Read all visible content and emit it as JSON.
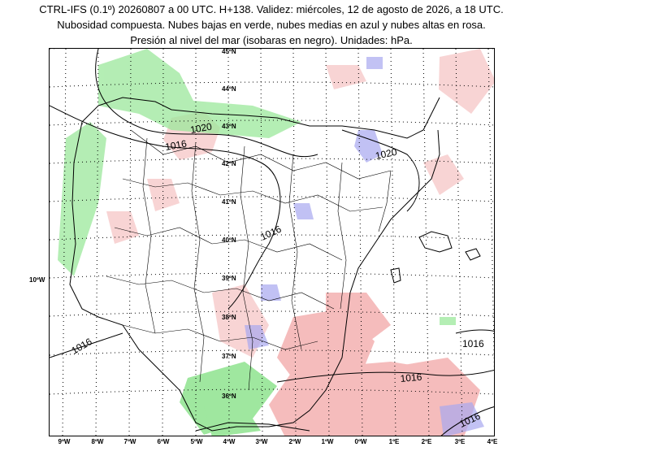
{
  "title": {
    "line1": "CTRL-IFS (0.1º) 20260807 a 00 UTC. H+138. Validez: miércoles, 12 de agosto de 2026, a 18 UTC.",
    "line2": "Nubosidad compuesta. Nubes bajas en verde, nubes medias en azul y nubes altas en rosa.",
    "line3": "Presión al nivel del mar (isobaras en negro). Unidades: hPa."
  },
  "colors": {
    "low_clouds": "#7fe07f",
    "mid_clouds": "#a8a8f0",
    "high_clouds": "#f2a6a6",
    "isobars": "#000000"
  },
  "lat_labels": [
    "45ºN",
    "44ºN",
    "43ºN",
    "42ºN",
    "41ºN",
    "40ºN",
    "39ºN",
    "38ºN",
    "37ºN",
    "36ºN"
  ],
  "lon_labels": [
    "9ºW",
    "8ºW",
    "7ºW",
    "6ºW",
    "5ºW",
    "4ºW",
    "3ºW",
    "2ºW",
    "1ºW",
    "0ºW",
    "1ºE",
    "2ºE",
    "3ºE",
    "4ºE"
  ],
  "side_label": "10ºW",
  "isobar_labels": [
    "1020",
    "1016",
    "1020",
    "1016",
    "1016",
    "1016",
    "1016",
    "1016"
  ]
}
